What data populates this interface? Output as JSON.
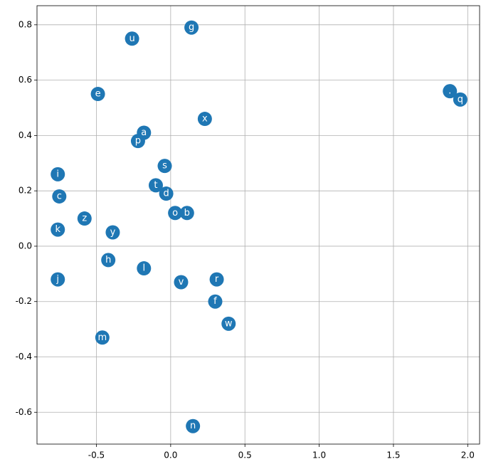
{
  "chart_data": {
    "type": "scatter",
    "labels": [
      "g",
      "u",
      "e",
      ".",
      "q",
      "x",
      "a",
      "p",
      "s",
      "i",
      "t",
      "d",
      "c",
      "z",
      "o",
      "b",
      "k",
      "y",
      "h",
      "l",
      "j",
      "r",
      "v",
      "f",
      "w",
      "m",
      "n"
    ],
    "x": [
      0.14,
      -0.26,
      -0.49,
      1.88,
      1.95,
      0.23,
      -0.18,
      -0.22,
      -0.04,
      -0.76,
      -0.1,
      -0.03,
      -0.75,
      -0.58,
      0.03,
      0.11,
      -0.76,
      -0.39,
      -0.42,
      -0.18,
      -0.76,
      0.31,
      0.07,
      0.3,
      0.39,
      -0.46,
      0.15
    ],
    "y": [
      0.79,
      0.75,
      0.55,
      0.56,
      0.53,
      0.46,
      0.41,
      0.38,
      0.29,
      0.26,
      0.22,
      0.19,
      0.18,
      0.1,
      0.12,
      0.12,
      0.06,
      0.05,
      -0.05,
      -0.08,
      -0.12,
      -0.12,
      -0.13,
      -0.2,
      -0.28,
      -0.33,
      -0.65
    ],
    "color": "#1f77b4",
    "xlim": [
      -0.9,
      2.08
    ],
    "ylim": [
      -0.715,
      0.869
    ],
    "xticks": [
      -0.5,
      {
        "value": 0,
        "label": "0.0"
      },
      0.5,
      {
        "value": 1,
        "label": "1.0"
      },
      1.5,
      {
        "value": 2,
        "label": "2.0"
      }
    ],
    "yticks": [
      -0.6,
      -0.4,
      -0.2,
      {
        "value": 0,
        "label": "0.0"
      },
      0.2,
      0.4,
      0.6,
      0.8
    ],
    "grid": true
  }
}
